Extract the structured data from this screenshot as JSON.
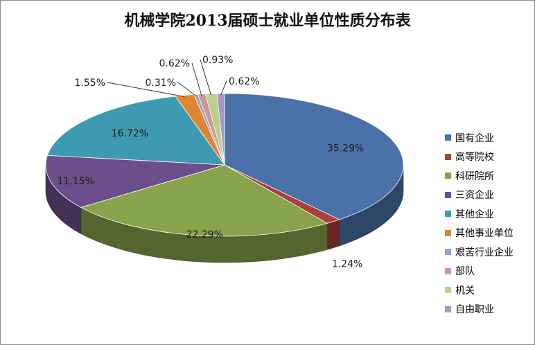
{
  "chart_data": {
    "type": "pie",
    "title": "机械学院2013届硕士就业单位性质分布表",
    "categories": [
      "国有企业",
      "高等院校",
      "科研院所",
      "三资企业",
      "其他企业",
      "其他事业单位",
      "艰苦行业企业",
      "部队",
      "机关",
      "自由职业"
    ],
    "values": [
      35.29,
      1.24,
      22.29,
      11.15,
      16.72,
      1.55,
      0.31,
      0.62,
      0.93,
      0.62
    ],
    "labels": [
      "35.29%",
      "1.24%",
      "22.29%",
      "11.15%",
      "16.72%",
      "1.55%",
      "0.31%",
      "0.62%",
      "0.93%",
      "0.62%"
    ],
    "colors": [
      "#4a72a8",
      "#a8403c",
      "#87a34b",
      "#6c4f8a",
      "#3d9ab0",
      "#de8632",
      "#8fa7cf",
      "#d49592",
      "#b9d18e",
      "#a897c3"
    ],
    "legend_position": "right"
  }
}
